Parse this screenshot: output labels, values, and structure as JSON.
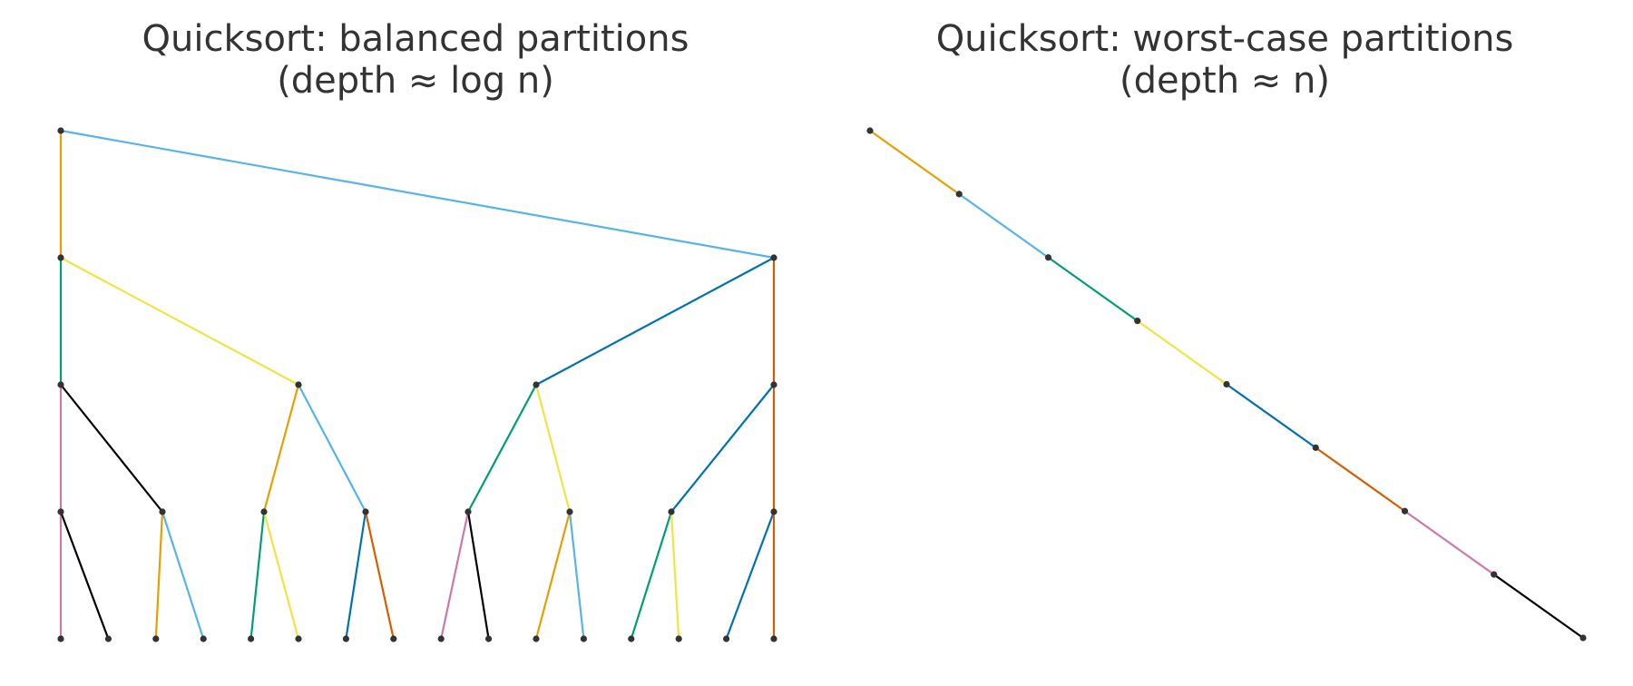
{
  "panels": [
    {
      "id": "balanced",
      "title_line1": "Quicksort: balanced partitions",
      "title_line2": "(depth ≈ log n)"
    },
    {
      "id": "worst",
      "title_line1": "Quicksort: worst-case partitions",
      "title_line2": "(depth ≈ n)"
    }
  ],
  "colors": {
    "palette": [
      "#E69F00",
      "#56B4E9",
      "#009E73",
      "#F0E442",
      "#0072B2",
      "#D55E00",
      "#CC79A7",
      "#000000"
    ],
    "node": "#333333",
    "text": "#333333"
  },
  "balanced_tree": {
    "depth": 4,
    "leaves": 16
  },
  "worst_chain": {
    "nodes": 9
  }
}
